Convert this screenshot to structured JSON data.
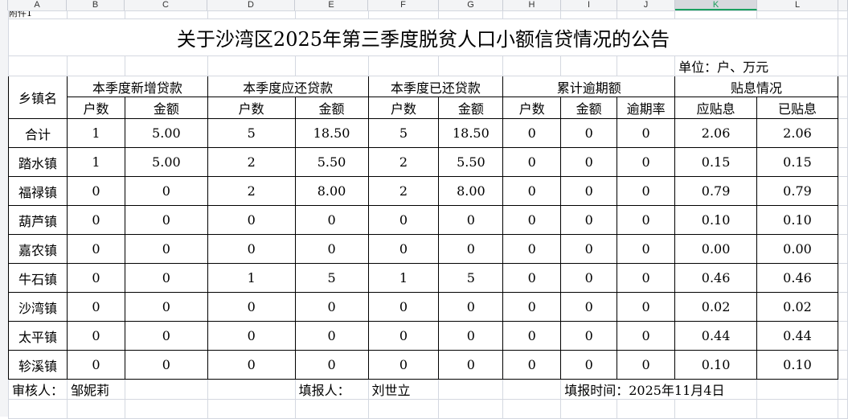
{
  "columns": [
    "A",
    "B",
    "C",
    "D",
    "E",
    "F",
    "G",
    "H",
    "I",
    "J",
    "K",
    "L"
  ],
  "selected_column": "K",
  "attachment_label": "附件1",
  "title": "关于沙湾区2025年第三季度脱贫人口小额信贷情况的公告",
  "unit": "单位：户、万元",
  "headers": {
    "town": "乡镇名",
    "groups": [
      "本季度新增贷款",
      "本季度应还贷款",
      "本季度已还贷款",
      "累计逾期额",
      "贴息情况"
    ],
    "sub": [
      "户数",
      "金额",
      "户数",
      "金额",
      "户数",
      "金额",
      "户数",
      "金额",
      "逾期率",
      "应贴息",
      "已贴息"
    ]
  },
  "rows": [
    [
      "合计",
      "1",
      "5.00",
      "5",
      "18.50",
      "5",
      "18.50",
      "0",
      "0",
      "0",
      "2.06",
      "2.06"
    ],
    [
      "踏水镇",
      "1",
      "5.00",
      "2",
      "5.50",
      "2",
      "5.50",
      "0",
      "0",
      "0",
      "0.15",
      "0.15"
    ],
    [
      "福禄镇",
      "0",
      "0",
      "2",
      "8.00",
      "2",
      "8.00",
      "0",
      "0",
      "0",
      "0.79",
      "0.79"
    ],
    [
      "葫芦镇",
      "0",
      "0",
      "0",
      "0",
      "0",
      "0",
      "0",
      "0",
      "0",
      "0.10",
      "0.10"
    ],
    [
      "嘉农镇",
      "0",
      "0",
      "0",
      "0",
      "0",
      "0",
      "0",
      "0",
      "0",
      "0.00",
      "0.00"
    ],
    [
      "牛石镇",
      "0",
      "0",
      "1",
      "5",
      "1",
      "5",
      "0",
      "0",
      "0",
      "0.46",
      "0.46"
    ],
    [
      "沙湾镇",
      "0",
      "0",
      "0",
      "0",
      "0",
      "0",
      "0",
      "0",
      "0",
      "0.02",
      "0.02"
    ],
    [
      "太平镇",
      "0",
      "0",
      "0",
      "0",
      "0",
      "0",
      "0",
      "0",
      "0",
      "0.44",
      "0.44"
    ],
    [
      "轸溪镇",
      "0",
      "0",
      "0",
      "0",
      "0",
      "0",
      "0",
      "0",
      "0",
      "0.10",
      "0.10"
    ]
  ],
  "footer": {
    "reviewer_label": "审核人：",
    "reviewer": "邹妮莉",
    "filler_label": "填报人：",
    "filler": "刘世立",
    "date": "填报时间：2025年11月4日"
  }
}
